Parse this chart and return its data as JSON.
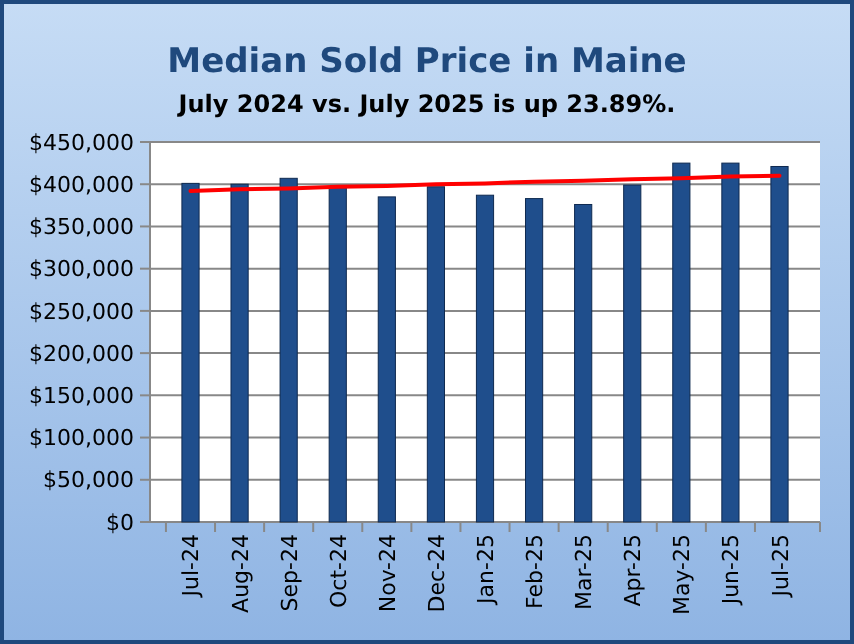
{
  "chart_data": {
    "type": "bar",
    "title": "Median Sold Price in Maine",
    "subtitle": "July 2024 vs. July 2025 is up 23.89%.",
    "categories": [
      "Jul-24",
      "Aug-24",
      "Sep-24",
      "Oct-24",
      "Nov-24",
      "Dec-24",
      "Jan-25",
      "Feb-25",
      "Mar-25",
      "Apr-25",
      "May-25",
      "Jun-25",
      "Jul-25"
    ],
    "series": [
      {
        "color": "#1f4e8c",
        "values": [
          401000,
          400000,
          407000,
          396000,
          385000,
          397000,
          387000,
          383000,
          376000,
          399000,
          425000,
          425000,
          421000
        ]
      },
      {
        "type": "line",
        "color": "#ff0000",
        "values": [
          392000,
          394000,
          395000,
          397000,
          398000,
          400000,
          401000,
          403000,
          404000,
          406000,
          407000,
          409000,
          410000
        ]
      }
    ],
    "ylim": [
      0,
      450000
    ],
    "yticks": [
      {
        "value": 0,
        "label": "$0"
      },
      {
        "value": 50000,
        "label": "$50,000"
      },
      {
        "value": 100000,
        "label": "$100,000"
      },
      {
        "value": 150000,
        "label": "$150,000"
      },
      {
        "value": 200000,
        "label": "$200,000"
      },
      {
        "value": 250000,
        "label": "$250,000"
      },
      {
        "value": 300000,
        "label": "$300,000"
      },
      {
        "value": 350000,
        "label": "$350,000"
      },
      {
        "value": 400000,
        "label": "$400,000"
      },
      {
        "value": 450000,
        "label": "$450,000"
      }
    ],
    "grid": "y"
  }
}
